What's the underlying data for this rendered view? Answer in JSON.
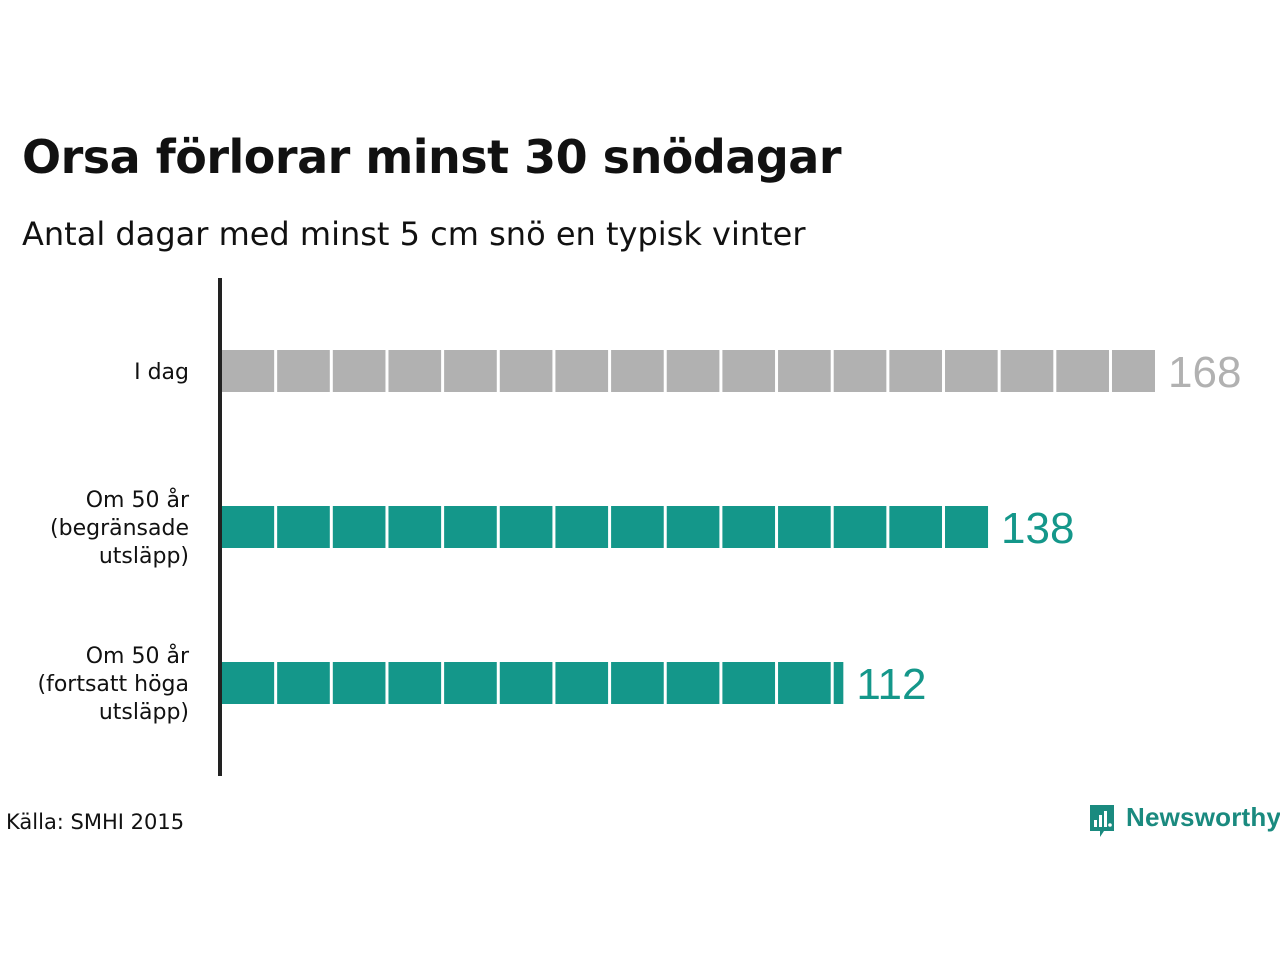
{
  "title": "Orsa förlorar minst 30 snödagar",
  "subtitle": "Antal dagar med minst 5 cm snö en typisk vinter",
  "source": "Källa: SMHI 2015",
  "logo_text": "Newsworthy",
  "colors": {
    "gray": "#b1b1b1",
    "teal": "#14978a",
    "axis": "#222222"
  },
  "chart_data": {
    "type": "bar",
    "orientation": "horizontal",
    "title": "Orsa förlorar minst 30 snödagar",
    "subtitle": "Antal dagar med minst 5 cm snö en typisk vinter",
    "categories": [
      [
        "I dag"
      ],
      [
        "Om 50 år",
        "(begränsade",
        "utsläpp)"
      ],
      [
        "Om 50 år",
        "(fortsatt höga",
        "utsläpp)"
      ]
    ],
    "values": [
      168,
      138,
      112
    ],
    "value_labels": [
      "168",
      "138",
      "112"
    ],
    "bar_colors": [
      "#b1b1b1",
      "#14978a",
      "#14978a"
    ],
    "segment_size": 10,
    "xlim": [
      0,
      168
    ],
    "grid": false
  }
}
